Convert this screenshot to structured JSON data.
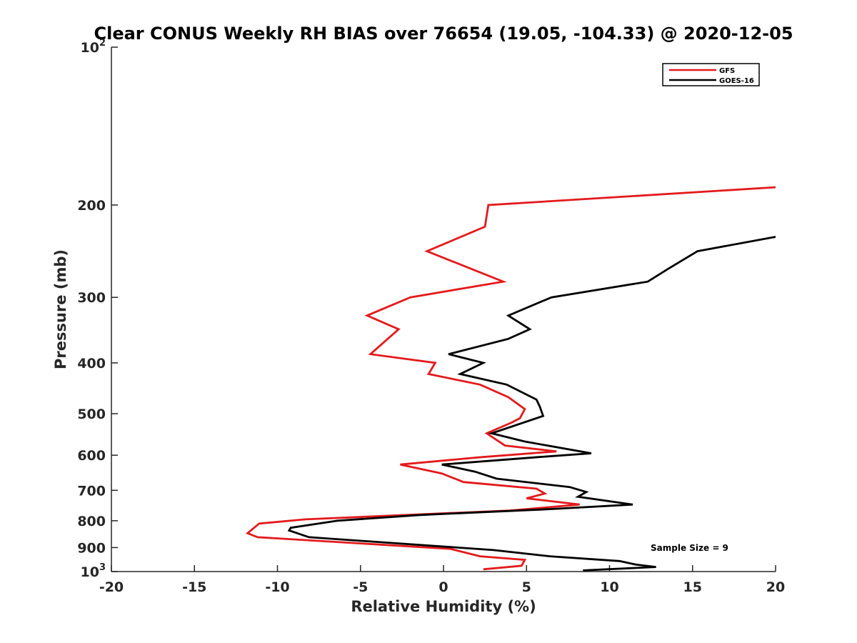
{
  "chart_data": {
    "type": "line",
    "title": "Clear CONUS Weekly RH BIAS over 76654 (19.05, -104.33) @ 2020-12-05",
    "xlabel": "Relative Humidity (%)",
    "ylabel": "Pressure (mb)",
    "xlim": [
      -20,
      20
    ],
    "ylim": [
      100,
      1000
    ],
    "yscale": "log",
    "y_reversed": true,
    "grid": false,
    "legend_position": "top-right",
    "x_ticks": [
      "-20",
      "-15",
      "-10",
      "-5",
      "0",
      "5",
      "10",
      "15",
      "20"
    ],
    "x_tick_values": [
      -20,
      -15,
      -10,
      -5,
      0,
      5,
      10,
      15,
      20
    ],
    "y_ticks": [
      {
        "value": 100,
        "base": "10",
        "exp": "2"
      },
      {
        "value": 200,
        "label": "200"
      },
      {
        "value": 300,
        "label": "300"
      },
      {
        "value": 400,
        "label": "400"
      },
      {
        "value": 500,
        "label": "500"
      },
      {
        "value": 600,
        "label": "600"
      },
      {
        "value": 700,
        "label": "700"
      },
      {
        "value": 800,
        "label": "800"
      },
      {
        "value": 900,
        "label": "900"
      },
      {
        "value": 1000,
        "base": "10",
        "exp": "3"
      }
    ],
    "series": [
      {
        "name": "GFS",
        "color": "#e31a1c",
        "points": [
          [
            20.0,
            185
          ],
          [
            2.7,
            200
          ],
          [
            2.5,
            220
          ],
          [
            -1.0,
            245
          ],
          [
            3.6,
            280
          ],
          [
            -2.0,
            300
          ],
          [
            -4.6,
            325
          ],
          [
            -2.7,
            345
          ],
          [
            -4.4,
            385
          ],
          [
            -0.5,
            400
          ],
          [
            -0.9,
            420
          ],
          [
            2.2,
            440
          ],
          [
            3.9,
            465
          ],
          [
            4.9,
            490
          ],
          [
            4.6,
            510
          ],
          [
            4.1,
            520
          ],
          [
            2.6,
            545
          ],
          [
            3.7,
            575
          ],
          [
            6.8,
            590
          ],
          [
            2.3,
            605
          ],
          [
            -2.6,
            625
          ],
          [
            -0.1,
            650
          ],
          [
            1.2,
            675
          ],
          [
            5.6,
            695
          ],
          [
            6.1,
            710
          ],
          [
            5.0,
            725
          ],
          [
            8.2,
            745
          ],
          [
            4.0,
            765
          ],
          [
            -8.3,
            795
          ],
          [
            -11.1,
            810
          ],
          [
            -11.8,
            845
          ],
          [
            -11.2,
            860
          ],
          [
            0.4,
            905
          ],
          [
            2.2,
            935
          ],
          [
            4.9,
            950
          ],
          [
            4.7,
            975
          ],
          [
            2.4,
            990
          ]
        ]
      },
      {
        "name": "GOES-16",
        "color": "#000000",
        "points": [
          [
            20.0,
            230
          ],
          [
            15.3,
            245
          ],
          [
            13.5,
            265
          ],
          [
            12.3,
            280
          ],
          [
            6.5,
            300
          ],
          [
            3.9,
            325
          ],
          [
            5.2,
            345
          ],
          [
            3.9,
            360
          ],
          [
            0.3,
            385
          ],
          [
            2.4,
            400
          ],
          [
            1.0,
            420
          ],
          [
            3.8,
            440
          ],
          [
            5.6,
            470
          ],
          [
            5.8,
            485
          ],
          [
            6.0,
            505
          ],
          [
            2.9,
            545
          ],
          [
            4.9,
            565
          ],
          [
            8.9,
            595
          ],
          [
            5.7,
            605
          ],
          [
            -0.1,
            625
          ],
          [
            1.9,
            645
          ],
          [
            3.2,
            665
          ],
          [
            7.6,
            690
          ],
          [
            8.6,
            705
          ],
          [
            8.1,
            720
          ],
          [
            11.4,
            745
          ],
          [
            6.5,
            760
          ],
          [
            -1.4,
            780
          ],
          [
            -6.4,
            800
          ],
          [
            -9.2,
            825
          ],
          [
            -9.3,
            835
          ],
          [
            -8.1,
            860
          ],
          [
            3.0,
            910
          ],
          [
            6.4,
            935
          ],
          [
            10.6,
            955
          ],
          [
            11.6,
            970
          ],
          [
            12.8,
            980
          ],
          [
            8.4,
            995
          ]
        ]
      }
    ],
    "annotations": [
      "Sample Size = 9"
    ]
  }
}
